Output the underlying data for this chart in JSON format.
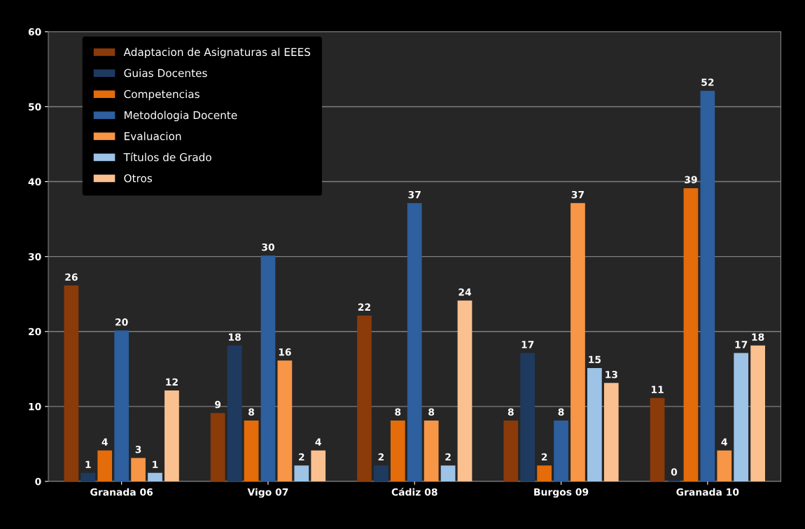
{
  "chart_data": {
    "type": "bar",
    "categories": [
      "Granada 06",
      "Vigo 07",
      "Cádiz 08",
      "Burgos 09",
      "Granada 10"
    ],
    "series": [
      {
        "name": "Adaptacion de Asignaturas al EEES",
        "color": "#8b3a0a",
        "values": [
          26,
          9,
          22,
          8,
          11
        ]
      },
      {
        "name": "Guias Docentes",
        "color": "#1f3a5f",
        "values": [
          1,
          18,
          2,
          17,
          0
        ]
      },
      {
        "name": "Competencias",
        "color": "#e46c0a",
        "values": [
          4,
          8,
          8,
          2,
          39
        ]
      },
      {
        "name": "Metodologia Docente",
        "color": "#2e5f9e",
        "values": [
          20,
          30,
          37,
          8,
          52
        ]
      },
      {
        "name": "Evaluacion",
        "color": "#f79646",
        "values": [
          3,
          16,
          8,
          37,
          4
        ]
      },
      {
        "name": "Títulos de Grado",
        "color": "#9dc3e6",
        "values": [
          1,
          2,
          2,
          15,
          17
        ]
      },
      {
        "name": "Otros",
        "color": "#fac090",
        "values": [
          12,
          4,
          24,
          13,
          18
        ]
      }
    ],
    "ylim": [
      0,
      60
    ],
    "yticks": [
      0,
      10,
      20,
      30,
      40,
      50,
      60
    ],
    "grid": "y",
    "legend": "top left",
    "data_labels": true
  }
}
